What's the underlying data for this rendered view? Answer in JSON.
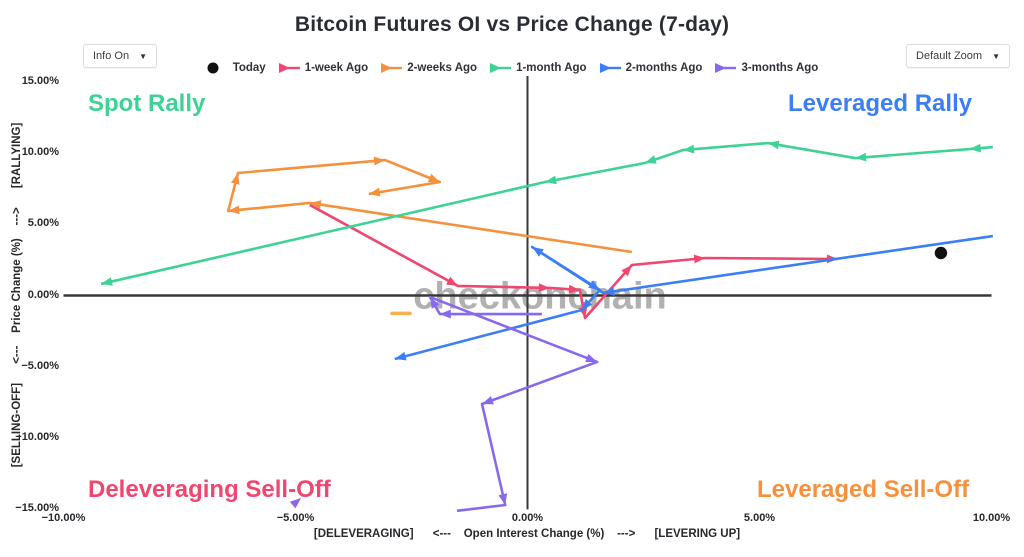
{
  "header": {
    "title": "Bitcoin Futures OI vs Price Change (7-day)",
    "info_dropdown": {
      "label": "Info On",
      "arrow": "▼"
    },
    "zoom_dropdown": {
      "label": "Default Zoom",
      "arrow": "▼"
    }
  },
  "watermark": "checkonchain",
  "quadrant_labels": {
    "top_left": {
      "text": "Spot Rally",
      "color": "#3ed294"
    },
    "top_right": {
      "text": "Leveraged Rally",
      "color": "#3b7ef5"
    },
    "bottom_left": {
      "text": "Deleveraging Sell-Off",
      "color": "#ef476f"
    },
    "bottom_right": {
      "text": "Leveraged Sell-Off",
      "color": "#f5913d"
    }
  },
  "axes": {
    "x_title": "[DELEVERAGING]      <---    Open Interest Change (%)    --->      [LEVERING UP]",
    "y_title": "[SELLING-OFF]      <---    Price Change (%)    --->      [RALLYING]",
    "x_ticks": [
      {
        "value": -10,
        "label": "−10.00%"
      },
      {
        "value": -5,
        "label": "−5.00%"
      },
      {
        "value": 0,
        "label": "0.00%"
      },
      {
        "value": 5,
        "label": "5.00%"
      },
      {
        "value": 10,
        "label": "10.00%"
      }
    ],
    "y_ticks": [
      {
        "value": 15,
        "label": "15.00%"
      },
      {
        "value": 10,
        "label": "10.00%"
      },
      {
        "value": 5,
        "label": "5.00%"
      },
      {
        "value": 0,
        "label": "0.00%"
      },
      {
        "value": -5,
        "label": "−5.00%"
      },
      {
        "value": -10,
        "label": "−10.00%"
      },
      {
        "value": -15,
        "label": "−15.00%"
      }
    ]
  },
  "chart_data": {
    "type": "scatter",
    "title": "Bitcoin Futures OI vs Price Change (7-day)",
    "xlabel": "Open Interest Change (%)",
    "ylabel": "Price Change (%)",
    "xlim": [
      -10,
      10
    ],
    "ylim": [
      -15,
      15
    ],
    "grid": false,
    "zeroline_color": "#383838",
    "today": {
      "label": "Today",
      "color": "#111111",
      "oi": 8.91,
      "price": 2.98
    },
    "series": [
      {
        "name": "1-week Ago",
        "color": "#ef476f",
        "points": [
          [
            -4.69,
            6.35
          ],
          [
            -1.5,
            0.67
          ],
          [
            0.48,
            0.53
          ],
          [
            1.13,
            0.39
          ],
          [
            1.24,
            -1.58
          ],
          [
            2.25,
            2.14
          ],
          [
            3.83,
            2.63
          ],
          [
            6.69,
            2.56
          ]
        ]
      },
      {
        "name": "2-weeks Ago",
        "color": "#f5913d",
        "points": [
          [
            2.25,
            3.05
          ],
          [
            -4.69,
            6.49
          ],
          [
            -6.45,
            5.93
          ],
          [
            -6.24,
            8.59
          ],
          [
            -3.07,
            9.5
          ],
          [
            -1.89,
            7.96
          ],
          [
            -3.42,
            7.12
          ]
        ]
      },
      {
        "name": "1-month Ago",
        "color": "#3ed294",
        "points": [
          [
            10.03,
            10.41
          ],
          [
            9.53,
            10.27
          ],
          [
            7.06,
            9.64
          ],
          [
            5.18,
            10.69
          ],
          [
            3.35,
            10.2
          ],
          [
            2.53,
            9.29
          ],
          [
            0.38,
            7.96
          ],
          [
            -9.19,
            0.81
          ]
        ]
      },
      {
        "name": "2-months Ago",
        "color": "#3b7ef5",
        "points": [
          [
            10.03,
            4.17
          ],
          [
            1.63,
            0.18
          ],
          [
            0.1,
            3.4
          ],
          [
            1.56,
            0.39
          ],
          [
            1.17,
            -1.02
          ],
          [
            -2.86,
            -4.45
          ]
        ]
      },
      {
        "name": "3-months Ago",
        "color": "#8768ef",
        "tail_no_arrow": true,
        "points": [
          [
            0.31,
            -1.3
          ],
          [
            -1.89,
            -1.3
          ],
          [
            -2.1,
            -0.11
          ],
          [
            1.5,
            -4.66
          ],
          [
            -0.98,
            -7.61
          ],
          [
            -0.48,
            -14.69
          ],
          [
            -1.52,
            -15.1
          ]
        ]
      }
    ],
    "annotations": {
      "orange_dash": {
        "color": "#f5b04d",
        "from": [
          -2.92,
          -1.25
        ],
        "to": [
          -2.53,
          -1.25
        ]
      },
      "purple_start_arrow": {
        "color": "#8768ef",
        "at": [
          -4.88,
          -14.2
        ],
        "angle_deg": -40
      }
    }
  },
  "legend": {
    "items": [
      {
        "label": "Today",
        "color": "#111111",
        "marker": "dot"
      },
      {
        "label": "1-week Ago",
        "color": "#ef476f",
        "marker": "arrow"
      },
      {
        "label": "2-weeks Ago",
        "color": "#f5913d",
        "marker": "arrow"
      },
      {
        "label": "1-month Ago",
        "color": "#3ed294",
        "marker": "arrow"
      },
      {
        "label": "2-months Ago",
        "color": "#3b7ef5",
        "marker": "arrow"
      },
      {
        "label": "3-months Ago",
        "color": "#8768ef",
        "marker": "arrow"
      }
    ]
  }
}
